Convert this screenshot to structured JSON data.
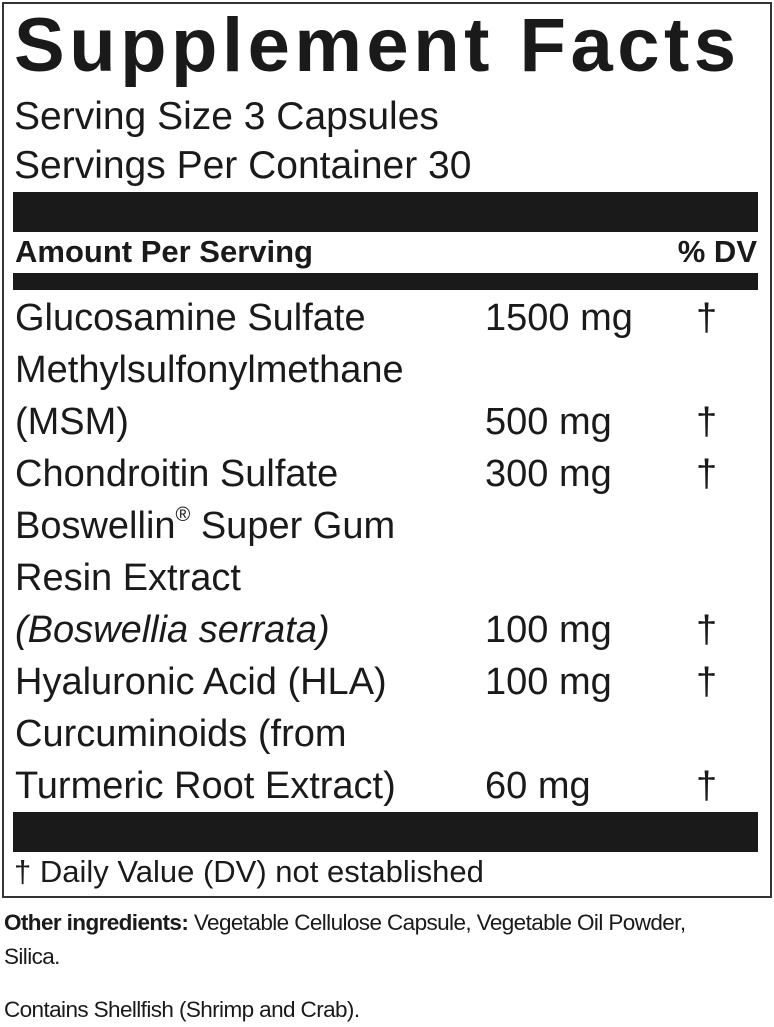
{
  "title": "Supplement Facts",
  "serving_size": "Serving Size 3 Capsules",
  "servings_per_container": "Servings Per Container 30",
  "header": {
    "amount": "Amount Per Serving",
    "dv": "% DV"
  },
  "ingredients": [
    {
      "lines": [
        "Glucosamine Sulfate"
      ],
      "amount": "1500 mg",
      "dv": "†"
    },
    {
      "lines": [
        "Methylsulfonylmethane",
        "(MSM)"
      ],
      "amount": "500 mg",
      "dv": "†"
    },
    {
      "lines": [
        "Chondroitin Sulfate"
      ],
      "amount": "300 mg",
      "dv": "†"
    },
    {
      "lines": [
        "Boswellin",
        "Resin Extract",
        "(Boswellia serrata)"
      ],
      "sup": "®",
      "line0_rest": " Super Gum",
      "amount": "100 mg",
      "dv": "†"
    },
    {
      "lines": [
        "Hyaluronic Acid (HLA)"
      ],
      "amount": "100 mg",
      "dv": "†"
    },
    {
      "lines": [
        "Curcuminoids (from",
        "Turmeric Root Extract)"
      ],
      "amount": "60 mg",
      "dv": "†"
    }
  ],
  "footnote": "† Daily Value (DV) not established",
  "other": {
    "label": "Other ingredients:",
    "text": " Vegetable Cellulose Capsule, Vegetable Oil Powder,",
    "text2": "Silica."
  },
  "allergen": "Contains Shellfish (Shrimp and Crab)."
}
